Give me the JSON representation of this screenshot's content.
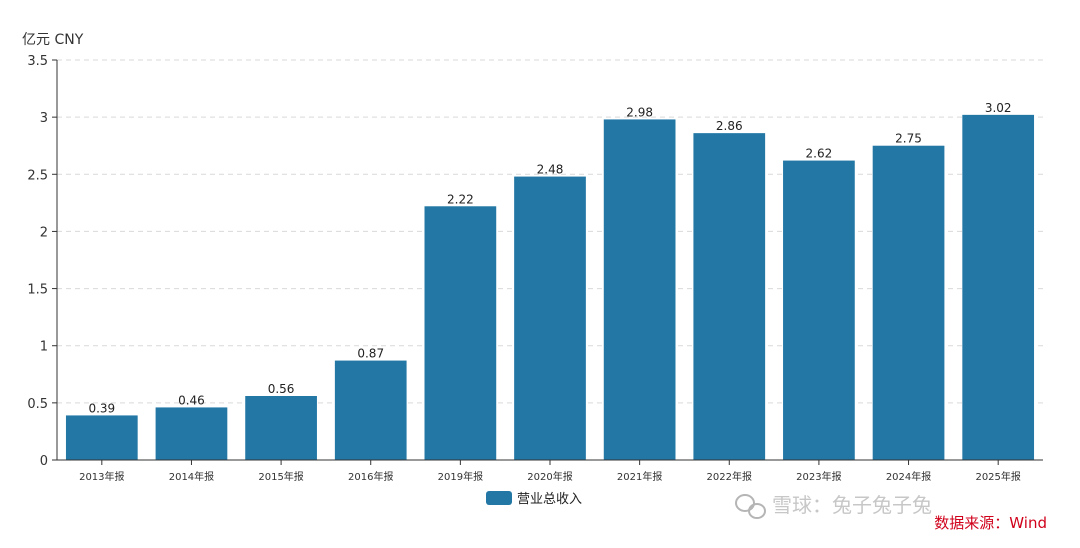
{
  "chart_data": {
    "type": "bar",
    "unit_label": "亿元  CNY",
    "categories": [
      "2013年报",
      "2014年报",
      "2015年报",
      "2016年报",
      "2019年报",
      "2020年报",
      "2021年报",
      "2022年报",
      "2023年报",
      "2024年报",
      "2025年报"
    ],
    "series": [
      {
        "name": "营业总收入",
        "values": [
          0.39,
          0.46,
          0.56,
          0.87,
          2.22,
          2.48,
          2.98,
          2.86,
          2.62,
          2.75,
          3.02
        ],
        "color": "#2277a5"
      }
    ],
    "data_labels": [
      "0.39",
      "0.46",
      "0.56",
      "0.87",
      "2.22",
      "2.48",
      "2.98",
      "2.86",
      "2.62",
      "2.75",
      "3.02"
    ],
    "yticks": [
      "0",
      "0.5",
      "1",
      "1.5",
      "2",
      "2.5",
      "3",
      "3.5"
    ],
    "ylim": [
      0,
      3.5
    ],
    "grid": "horizontal-dashed",
    "legend_position": "bottom-center"
  },
  "source_text": "数据来源：Wind",
  "watermark_text": "雪球：兔子兔子兔",
  "watermark_icon": "wechat-icon"
}
